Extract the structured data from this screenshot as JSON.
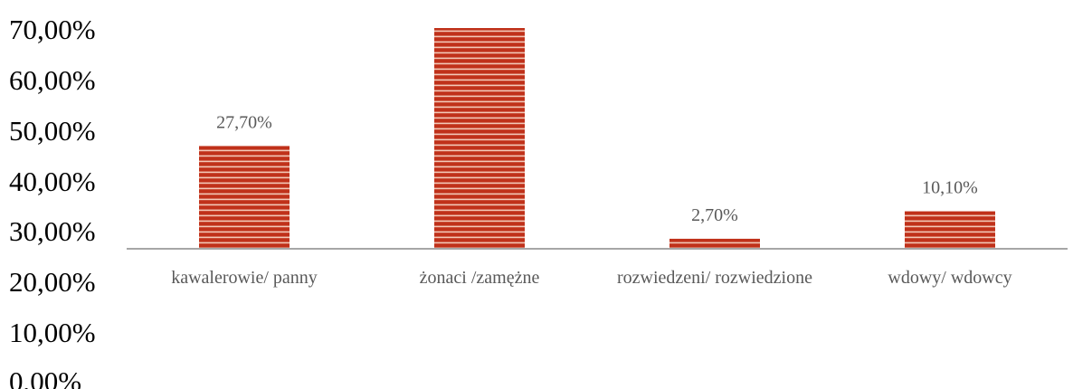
{
  "chart_data": {
    "type": "bar",
    "categories": [
      "kawalerowie/ panny",
      "żonaci /zamężne",
      "rozwiedzeni/ rozwiedzione",
      "wdowy/ wdowcy"
    ],
    "values": [
      27.7,
      59.5,
      2.7,
      10.1
    ],
    "data_labels": [
      "27,70%",
      "",
      "2,70%",
      "10,10%"
    ],
    "y_tick_labels": [
      "70,00%",
      "60,00%",
      "50,00%",
      "40,00%",
      "30,00%",
      "20,00%",
      "10,00%",
      "0,00%"
    ],
    "title": "",
    "xlabel": "",
    "ylabel": "",
    "grid": false,
    "colors": {
      "bar": "#c0311a",
      "stripe": "#f3c9b8",
      "axis": "#a6a6a6"
    }
  }
}
